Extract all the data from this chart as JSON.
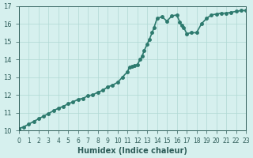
{
  "xlabel": "Humidex (Indice chaleur)",
  "ylabel": "",
  "x_values": [
    0,
    0.5,
    1,
    1.5,
    2,
    2.5,
    3,
    3.5,
    4,
    4.5,
    5,
    5.5,
    6,
    6.5,
    7,
    7.5,
    8,
    8.5,
    9,
    9.5,
    10,
    10.5,
    11,
    11.2,
    11.5,
    11.7,
    12,
    12.3,
    12.5,
    12.7,
    13,
    13.2,
    13.5,
    13.7,
    14,
    14.5,
    15,
    15.5,
    16,
    16.3,
    16.5,
    16.7,
    17,
    17.5,
    18,
    18.5,
    19,
    19.5,
    20,
    20.5,
    21,
    21.5,
    22,
    22.5,
    23
  ],
  "y_values": [
    10.1,
    10.2,
    10.35,
    10.5,
    10.65,
    10.8,
    10.95,
    11.1,
    11.25,
    11.35,
    11.5,
    11.6,
    11.75,
    11.8,
    11.95,
    12.0,
    12.15,
    12.25,
    12.45,
    12.55,
    12.7,
    13.0,
    13.3,
    13.55,
    13.6,
    13.65,
    13.7,
    14.0,
    14.2,
    14.5,
    14.85,
    15.1,
    15.5,
    15.8,
    16.3,
    16.4,
    16.15,
    16.45,
    16.5,
    16.1,
    15.9,
    15.8,
    15.45,
    15.5,
    15.5,
    16.0,
    16.3,
    16.5,
    16.55,
    16.6,
    16.6,
    16.65,
    16.7,
    16.75,
    16.75
  ],
  "line_color": "#2d7a6e",
  "bg_color": "#d6f0ee",
  "grid_color": "#b0d8d4",
  "tick_label_color": "#2d5c58",
  "xlim": [
    0,
    23
  ],
  "ylim": [
    10,
    17
  ],
  "xticks": [
    0,
    1,
    2,
    3,
    4,
    5,
    6,
    7,
    8,
    9,
    10,
    11,
    12,
    13,
    14,
    15,
    16,
    17,
    18,
    19,
    20,
    21,
    22,
    23
  ],
  "yticks": [
    10,
    11,
    12,
    13,
    14,
    15,
    16,
    17
  ],
  "linewidth": 1.2,
  "markersize": 2.5
}
